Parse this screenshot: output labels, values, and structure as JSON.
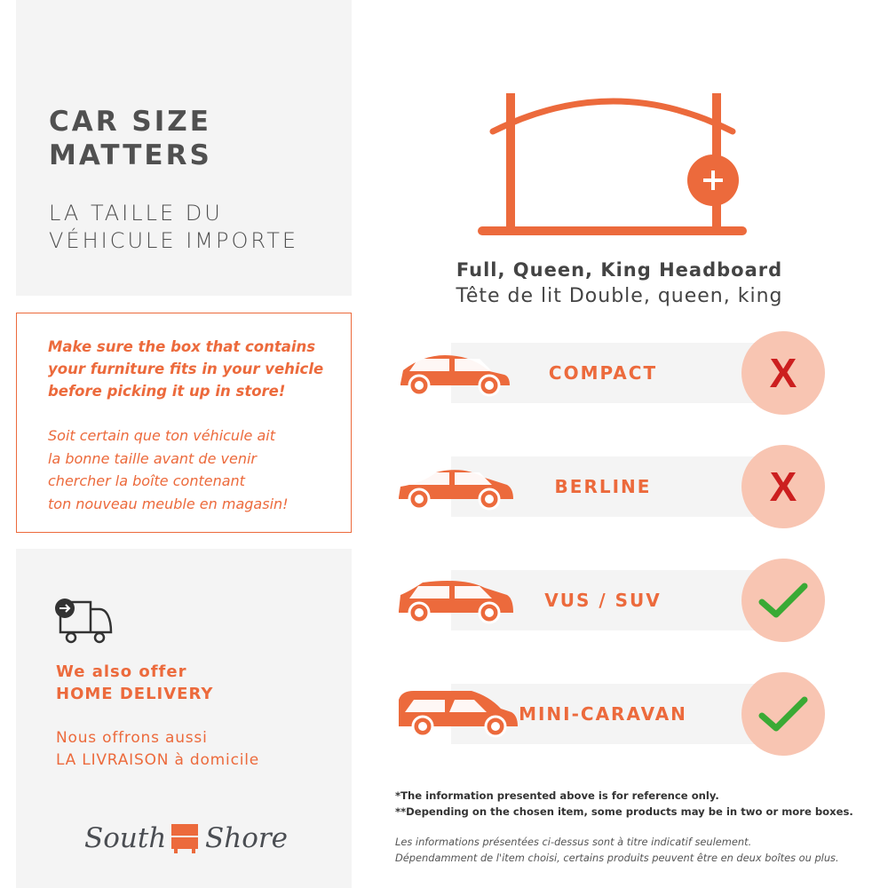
{
  "title": {
    "en": "CAR SIZE\nMATTERS",
    "fr": "LA TAILLE DU\nVÉHICULE IMPORTE"
  },
  "notice": {
    "en": "Make sure the box that contains\nyour furniture fits in your vehicle\nbefore picking it up in store!",
    "fr": "Soit certain que ton véhicule ait\nla bonne taille avant de venir\nchercher la boîte contenant\nton nouveau meuble en magasin!"
  },
  "delivery": {
    "icon": "delivery-truck-icon",
    "en_line1": "We also offer",
    "en_line2": "HOME DELIVERY",
    "fr_line1": "Nous offrons aussi",
    "fr_line2": "LA LIVRAISON à domicile"
  },
  "logo": {
    "text": "South Shore"
  },
  "product": {
    "icon": "headboard-icon",
    "name_en": "Full, Queen, King Headboard",
    "name_fr": "Tête de lit Double, queen, king"
  },
  "vehicles": [
    {
      "label": "COMPACT",
      "icon": "compact-car-icon",
      "fits": false
    },
    {
      "label": "BERLINE",
      "icon": "sedan-car-icon",
      "fits": false
    },
    {
      "label": "VUS / SUV",
      "icon": "suv-car-icon",
      "fits": true
    },
    {
      "label": "MINI-CARAVAN",
      "icon": "minivan-icon",
      "fits": true
    }
  ],
  "footnotes": {
    "en1": "*The information presented above is for reference only.",
    "en2": "**Depending on the chosen item, some products may be in two or more boxes.",
    "fr1": "Les informations présentées ci-dessus sont à titre indicatif seulement.",
    "fr2": "Dépendamment de l'item choisi, certains produits peuvent être en deux boîtes ou plus."
  },
  "colors": {
    "accent": "#ec6a3c",
    "panel": "#f4f4f4",
    "no": "#cc1f1f",
    "yes": "#3aaa35",
    "circle": "#f8c5b2"
  }
}
